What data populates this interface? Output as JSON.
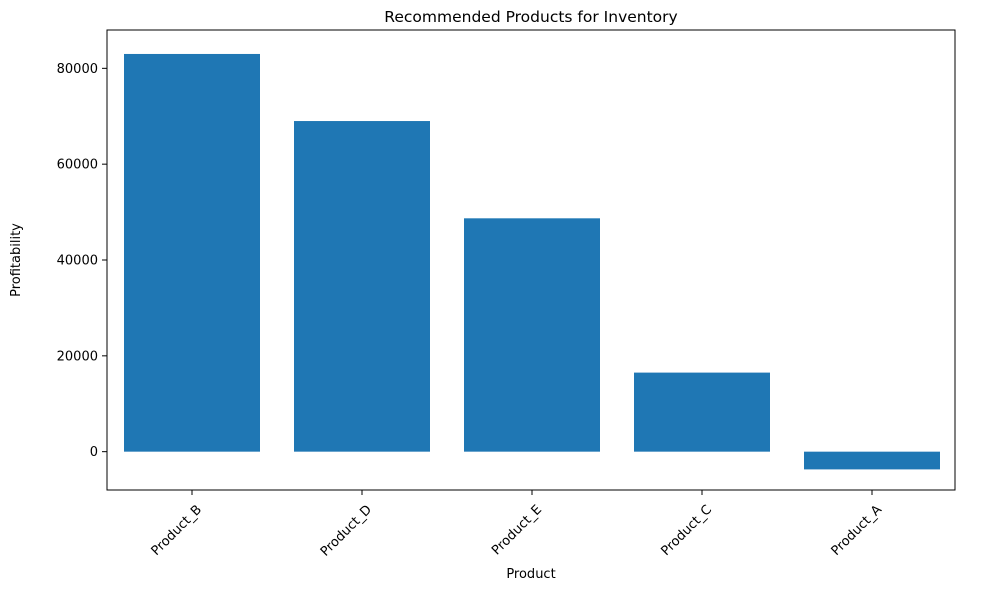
{
  "chart_data": {
    "type": "bar",
    "title": "Recommended Products for Inventory",
    "xlabel": "Product",
    "ylabel": "Profitability",
    "categories": [
      "Product_B",
      "Product_D",
      "Product_E",
      "Product_C",
      "Product_A"
    ],
    "values": [
      83000,
      69000,
      48700,
      16500,
      -3700
    ],
    "ylim": [
      -8000,
      88000
    ],
    "yticks": [
      0,
      20000,
      40000,
      60000,
      80000
    ],
    "ytick_labels": [
      "0",
      "20000",
      "40000",
      "60000",
      "80000"
    ],
    "bar_color": "#1f77b4",
    "grid": false,
    "legend": "none",
    "xtick_rotation": "45deg"
  }
}
